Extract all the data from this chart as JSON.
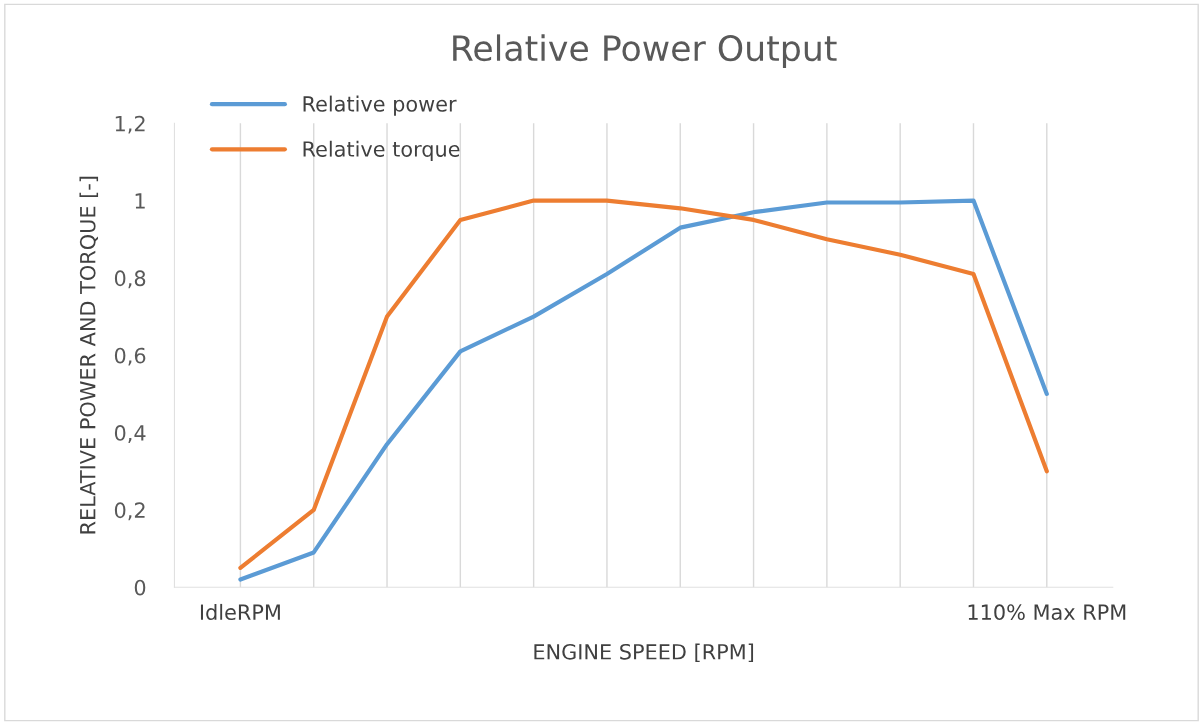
{
  "chart_data": {
    "type": "line",
    "title": "Relative Power Output",
    "xlabel": "ENGINE SPEED [RPM]",
    "ylabel": "RELATIVE POWER AND TORQUE [-]",
    "categories": [
      "IdleRPM",
      null,
      null,
      null,
      null,
      null,
      null,
      null,
      null,
      null,
      null,
      "110% Max RPM"
    ],
    "series": [
      {
        "name": "Relative power",
        "color": "#5b9bd5",
        "values": [
          0.02,
          0.09,
          0.37,
          0.61,
          0.7,
          0.81,
          0.93,
          0.97,
          0.995,
          0.995,
          1.0,
          0.5
        ]
      },
      {
        "name": "Relative torque",
        "color": "#ed7d31",
        "values": [
          0.05,
          0.2,
          0.7,
          0.95,
          1.0,
          1.0,
          0.98,
          0.95,
          0.9,
          0.86,
          0.81,
          0.3
        ]
      }
    ],
    "ylim": [
      0,
      1.2
    ],
    "yticks": [
      0,
      {
        "value": 0.2,
        "label": "0,2"
      },
      {
        "value": 0.4,
        "label": "0,4"
      },
      {
        "value": 0.6,
        "label": "0,6"
      },
      {
        "value": 0.8,
        "label": "0,8"
      },
      1,
      {
        "value": 1.2,
        "label": "1,2"
      }
    ],
    "grid": "x",
    "legend": "top left",
    "marker": "none",
    "line_style": "solid"
  }
}
